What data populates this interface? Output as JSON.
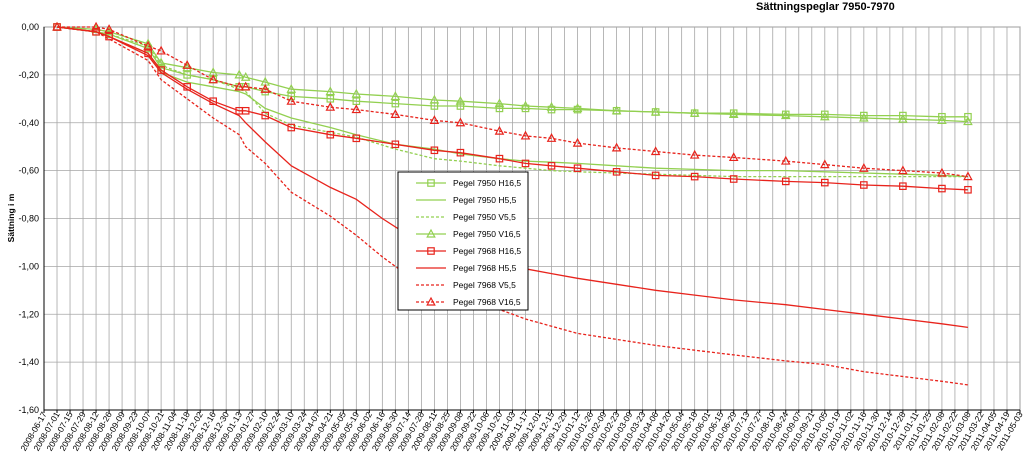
{
  "chart_data": {
    "type": "line",
    "title": "Sättningspeglar  7950-7970",
    "ylabel": "Sättning i m",
    "xlabel": "",
    "ylim": [
      -1.6,
      0
    ],
    "yticks": [
      "0,00",
      "-0,20",
      "-0,40",
      "-0,60",
      "-0,80",
      "-1,00",
      "-1,20",
      "-1,40",
      "-1,60"
    ],
    "grid": true,
    "legend_position": "center",
    "x_ticks": [
      "2008-06-17",
      "2008-07-01",
      "2008-07-15",
      "2008-07-29",
      "2008-08-12",
      "2008-08-26",
      "2008-09-09",
      "2008-09-23",
      "2008-10-07",
      "2008-10-21",
      "2008-11-04",
      "2008-11-18",
      "2008-12-02",
      "2008-12-16",
      "2008-12-30",
      "2009-01-13",
      "2009-01-27",
      "2009-02-10",
      "2009-02-24",
      "2009-03-10",
      "2009-03-24",
      "2009-04-07",
      "2009-04-21",
      "2009-05-05",
      "2009-05-19",
      "2009-06-02",
      "2009-06-16",
      "2009-06-30",
      "2009-07-14",
      "2009-07-28",
      "2009-08-11",
      "2009-08-25",
      "2009-09-08",
      "2009-09-22",
      "2009-10-06",
      "2009-10-20",
      "2009-11-03",
      "2009-11-17",
      "2009-12-01",
      "2009-12-15",
      "2009-12-29",
      "2010-01-12",
      "2010-01-26",
      "2010-02-09",
      "2010-02-23",
      "2010-03-09",
      "2010-03-23",
      "2010-04-06",
      "2010-04-20",
      "2010-05-04",
      "2010-05-18",
      "2010-06-01",
      "2010-06-15",
      "2010-06-29",
      "2010-07-13",
      "2010-07-27",
      "2010-08-10",
      "2010-08-24",
      "2010-09-07",
      "2010-09-21",
      "2010-10-05",
      "2010-10-19",
      "2010-11-02",
      "2010-11-16",
      "2010-11-30",
      "2010-12-14",
      "2010-12-28",
      "2011-01-11",
      "2011-01-25",
      "2011-02-08",
      "2011-02-22",
      "2011-03-08",
      "2011-03-22",
      "2011-04-05",
      "2011-04-19",
      "2011-05-03"
    ],
    "series": [
      {
        "name": "Pegel 7950 H16,5",
        "color": "#92d050",
        "dash": "solid",
        "marker": "square",
        "x": [
          "2008-07-01",
          "2008-08-12",
          "2008-08-26",
          "2008-10-07",
          "2008-10-21",
          "2008-11-18",
          "2008-12-16",
          "2009-01-13",
          "2009-01-20",
          "2009-02-10",
          "2009-03-10",
          "2009-04-21",
          "2009-05-19",
          "2009-06-30",
          "2009-08-11",
          "2009-09-08",
          "2009-10-20",
          "2009-11-17",
          "2009-12-15",
          "2010-01-12",
          "2010-02-23",
          "2010-04-06",
          "2010-05-18",
          "2010-06-29",
          "2010-08-24",
          "2010-10-05",
          "2010-11-16",
          "2010-12-28",
          "2011-02-08",
          "2011-03-08"
        ],
        "y": [
          0.0,
          -0.02,
          -0.03,
          -0.09,
          -0.17,
          -0.2,
          -0.22,
          -0.25,
          -0.25,
          -0.27,
          -0.29,
          -0.3,
          -0.31,
          -0.32,
          -0.33,
          -0.33,
          -0.34,
          -0.34,
          -0.345,
          -0.345,
          -0.35,
          -0.355,
          -0.36,
          -0.36,
          -0.365,
          -0.365,
          -0.37,
          -0.37,
          -0.375,
          -0.375
        ]
      },
      {
        "name": "Pegel 7950 H5,5",
        "color": "#92d050",
        "dash": "solid",
        "marker": "none",
        "x": [
          "2008-07-01",
          "2008-08-12",
          "2008-08-26",
          "2008-10-07",
          "2008-10-21",
          "2008-11-18",
          "2008-12-16",
          "2009-01-13",
          "2009-01-20",
          "2009-02-10",
          "2009-03-10",
          "2009-04-21",
          "2009-05-19",
          "2009-06-30",
          "2009-08-11",
          "2009-09-08",
          "2009-10-20",
          "2009-11-17",
          "2009-12-15",
          "2010-01-12",
          "2010-02-23",
          "2010-04-06",
          "2010-05-18",
          "2010-06-29",
          "2010-08-24",
          "2010-10-05",
          "2010-11-16",
          "2010-12-28",
          "2011-02-08",
          "2011-03-08"
        ],
        "y": [
          0.0,
          -0.02,
          -0.04,
          -0.11,
          -0.19,
          -0.23,
          -0.25,
          -0.27,
          -0.28,
          -0.34,
          -0.38,
          -0.42,
          -0.45,
          -0.49,
          -0.51,
          -0.53,
          -0.55,
          -0.56,
          -0.565,
          -0.57,
          -0.58,
          -0.59,
          -0.595,
          -0.6,
          -0.6,
          -0.605,
          -0.61,
          -0.615,
          -0.62,
          -0.625
        ]
      },
      {
        "name": "Pegel 7950 V5,5",
        "color": "#92d050",
        "dash": "dashed",
        "marker": "none",
        "x": [
          "2008-07-01",
          "2008-08-12",
          "2008-08-26",
          "2008-10-07",
          "2008-10-21",
          "2008-11-18",
          "2008-12-16",
          "2009-01-13",
          "2009-01-20",
          "2009-02-10",
          "2009-03-10",
          "2009-04-21",
          "2009-05-19",
          "2009-06-30",
          "2009-08-11",
          "2009-09-08",
          "2009-10-20",
          "2009-11-17",
          "2009-12-15",
          "2010-01-12",
          "2010-02-23",
          "2010-04-06",
          "2010-05-18",
          "2010-06-29",
          "2010-08-24",
          "2010-10-05",
          "2010-11-16",
          "2010-12-28",
          "2011-02-08",
          "2011-03-08"
        ],
        "y": [
          0.0,
          -0.02,
          -0.03,
          -0.08,
          -0.16,
          -0.2,
          -0.22,
          -0.26,
          -0.27,
          -0.36,
          -0.41,
          -0.44,
          -0.46,
          -0.51,
          -0.55,
          -0.56,
          -0.58,
          -0.59,
          -0.6,
          -0.605,
          -0.61,
          -0.615,
          -0.62,
          -0.625,
          -0.625,
          -0.625,
          -0.625,
          -0.625,
          -0.625,
          -0.625
        ]
      },
      {
        "name": "Pegel 7950 V16,5",
        "color": "#92d050",
        "dash": "solid",
        "marker": "triangle",
        "x": [
          "2008-07-01",
          "2008-08-12",
          "2008-08-26",
          "2008-10-07",
          "2008-10-21",
          "2008-11-18",
          "2008-12-16",
          "2009-01-13",
          "2009-01-20",
          "2009-02-10",
          "2009-03-10",
          "2009-04-21",
          "2009-05-19",
          "2009-06-30",
          "2009-08-11",
          "2009-09-08",
          "2009-10-20",
          "2009-11-17",
          "2009-12-15",
          "2010-01-12",
          "2010-02-23",
          "2010-04-06",
          "2010-05-18",
          "2010-06-29",
          "2010-08-24",
          "2010-10-05",
          "2010-11-16",
          "2010-12-28",
          "2011-02-08",
          "2011-03-08"
        ],
        "y": [
          0.0,
          -0.01,
          -0.02,
          -0.07,
          -0.15,
          -0.17,
          -0.19,
          -0.2,
          -0.21,
          -0.23,
          -0.26,
          -0.27,
          -0.28,
          -0.29,
          -0.305,
          -0.31,
          -0.32,
          -0.33,
          -0.335,
          -0.34,
          -0.35,
          -0.355,
          -0.36,
          -0.365,
          -0.37,
          -0.375,
          -0.38,
          -0.385,
          -0.39,
          -0.395
        ]
      },
      {
        "name": "Pegel 7968 H16,5",
        "color": "#e8231c",
        "dash": "solid",
        "marker": "square",
        "x": [
          "2008-07-01",
          "2008-08-12",
          "2008-08-26",
          "2008-10-07",
          "2008-10-21",
          "2008-11-18",
          "2008-12-16",
          "2009-01-13",
          "2009-01-20",
          "2009-02-10",
          "2009-03-10",
          "2009-04-21",
          "2009-05-19",
          "2009-06-30",
          "2009-08-11",
          "2009-09-08",
          "2009-10-20",
          "2009-11-17",
          "2009-12-15",
          "2010-01-12",
          "2010-02-23",
          "2010-04-06",
          "2010-05-18",
          "2010-06-29",
          "2010-08-24",
          "2010-10-05",
          "2010-11-16",
          "2010-12-28",
          "2011-02-08",
          "2011-03-08"
        ],
        "y": [
          0.0,
          -0.02,
          -0.04,
          -0.11,
          -0.18,
          -0.25,
          -0.31,
          -0.35,
          -0.35,
          -0.37,
          -0.42,
          -0.45,
          -0.465,
          -0.49,
          -0.515,
          -0.525,
          -0.55,
          -0.57,
          -0.58,
          -0.59,
          -0.605,
          -0.62,
          -0.625,
          -0.635,
          -0.645,
          -0.65,
          -0.66,
          -0.665,
          -0.675,
          -0.68
        ]
      },
      {
        "name": "Pegel 7968 H5,5",
        "color": "#e8231c",
        "dash": "solid",
        "marker": "none",
        "x": [
          "2008-07-01",
          "2008-08-12",
          "2008-08-26",
          "2008-10-07",
          "2008-10-21",
          "2008-11-18",
          "2008-12-16",
          "2009-01-13",
          "2009-01-20",
          "2009-02-10",
          "2009-03-10",
          "2009-04-21",
          "2009-05-19",
          "2009-06-16",
          "2009-07-14",
          "2009-08-11",
          "2009-09-08",
          "2009-10-20",
          "2009-11-17",
          "2009-12-15",
          "2010-01-12",
          "2010-02-23",
          "2010-04-06",
          "2010-05-18",
          "2010-06-29",
          "2010-08-24",
          "2010-10-05",
          "2010-11-16",
          "2010-12-28",
          "2011-02-08",
          "2011-03-08"
        ],
        "y": [
          0.0,
          -0.02,
          -0.04,
          -0.12,
          -0.19,
          -0.26,
          -0.32,
          -0.37,
          -0.4,
          -0.48,
          -0.58,
          -0.67,
          -0.72,
          -0.8,
          -0.87,
          -0.92,
          -0.96,
          -0.99,
          -1.01,
          -1.03,
          -1.05,
          -1.075,
          -1.1,
          -1.12,
          -1.14,
          -1.16,
          -1.18,
          -1.2,
          -1.22,
          -1.24,
          -1.255
        ]
      },
      {
        "name": "Pegel 7968 V5,5",
        "color": "#e8231c",
        "dash": "dashed",
        "marker": "none",
        "x": [
          "2008-07-01",
          "2008-08-12",
          "2008-08-26",
          "2008-10-07",
          "2008-10-21",
          "2008-11-18",
          "2008-12-16",
          "2009-01-13",
          "2009-01-20",
          "2009-02-10",
          "2009-03-10",
          "2009-04-21",
          "2009-05-19",
          "2009-06-16",
          "2009-07-14",
          "2009-08-11",
          "2009-09-08",
          "2009-10-20",
          "2009-11-17",
          "2009-12-15",
          "2010-01-12",
          "2010-02-23",
          "2010-04-06",
          "2010-05-18",
          "2010-06-29",
          "2010-08-24",
          "2010-10-05",
          "2010-11-16",
          "2010-12-28",
          "2011-02-08",
          "2011-03-08"
        ],
        "y": [
          0.0,
          -0.02,
          -0.05,
          -0.14,
          -0.22,
          -0.3,
          -0.38,
          -0.45,
          -0.5,
          -0.57,
          -0.69,
          -0.79,
          -0.87,
          -0.96,
          -1.04,
          -1.1,
          -1.14,
          -1.18,
          -1.22,
          -1.25,
          -1.28,
          -1.305,
          -1.33,
          -1.35,
          -1.37,
          -1.395,
          -1.41,
          -1.44,
          -1.46,
          -1.48,
          -1.495
        ]
      },
      {
        "name": "Pegel 7968 V16,5",
        "color": "#e8231c",
        "dash": "dashed",
        "marker": "triangle",
        "x": [
          "2008-07-01",
          "2008-08-12",
          "2008-08-26",
          "2008-10-07",
          "2008-10-21",
          "2008-11-18",
          "2008-12-16",
          "2009-01-13",
          "2009-01-20",
          "2009-02-10",
          "2009-03-10",
          "2009-04-21",
          "2009-05-19",
          "2009-06-30",
          "2009-08-11",
          "2009-09-08",
          "2009-10-20",
          "2009-11-17",
          "2009-12-15",
          "2010-01-12",
          "2010-02-23",
          "2010-04-06",
          "2010-05-18",
          "2010-06-29",
          "2010-08-24",
          "2010-10-05",
          "2010-11-16",
          "2010-12-28",
          "2011-02-08",
          "2011-03-08"
        ],
        "y": [
          0.0,
          0.0,
          -0.01,
          -0.08,
          -0.1,
          -0.16,
          -0.22,
          -0.25,
          -0.25,
          -0.26,
          -0.31,
          -0.335,
          -0.345,
          -0.365,
          -0.39,
          -0.4,
          -0.435,
          -0.455,
          -0.465,
          -0.485,
          -0.505,
          -0.52,
          -0.535,
          -0.545,
          -0.56,
          -0.575,
          -0.59,
          -0.6,
          -0.61,
          -0.625
        ]
      }
    ]
  }
}
